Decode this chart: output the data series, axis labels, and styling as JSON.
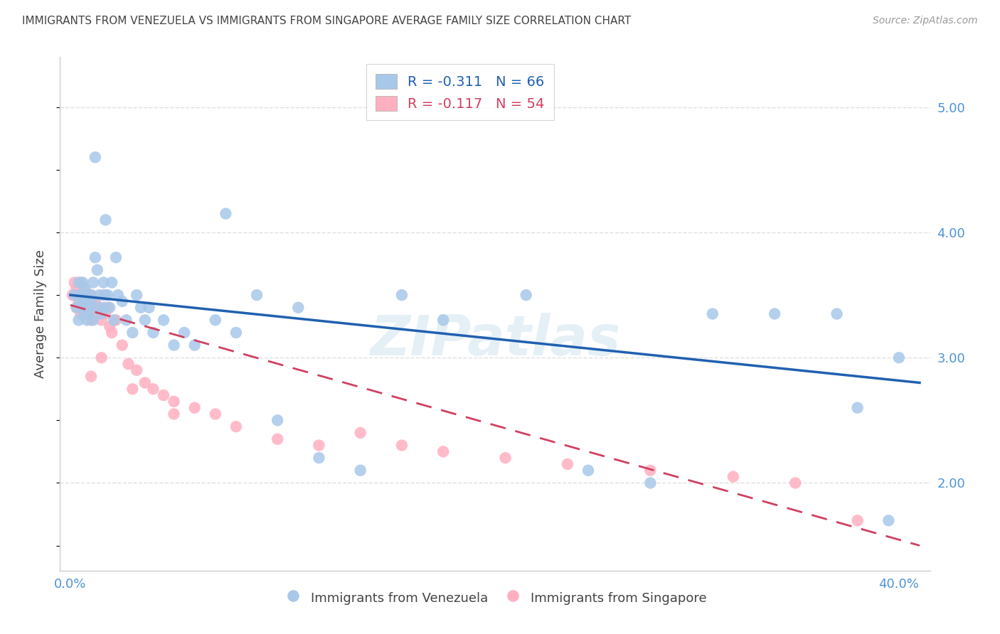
{
  "title": "IMMIGRANTS FROM VENEZUELA VS IMMIGRANTS FROM SINGAPORE AVERAGE FAMILY SIZE CORRELATION CHART",
  "source": "Source: ZipAtlas.com",
  "ylabel": "Average Family Size",
  "watermark": "ZIPatlas",
  "venezuela_color": "#a8c8ea",
  "singapore_color": "#ffb0c0",
  "venezuela_line_color": "#2060b0",
  "singapore_line_color": "#d04060",
  "venezuela_text_color": "#2060b0",
  "singapore_text_color": "#d04060",
  "tick_label_color": "#4d94d4",
  "title_color": "#444444",
  "grid_color": "#d8d8d8",
  "background_color": "#ffffff",
  "ylim": [
    1.3,
    5.4
  ],
  "xlim": [
    -0.005,
    0.415
  ],
  "y_ticks_right": [
    2.0,
    3.0,
    4.0,
    5.0
  ],
  "y_tick_labels_right": [
    "2.00",
    "3.00",
    "4.00",
    "5.00"
  ],
  "x_tick_positions": [
    0.0,
    0.1,
    0.2,
    0.3,
    0.4
  ],
  "x_tick_labels": [
    "0.0%",
    "",
    "",
    "",
    "40.0%"
  ],
  "legend_r1": "R = -0.311",
  "legend_n1": "N = 66",
  "legend_r2": "R = -0.117",
  "legend_n2": "N = 54",
  "venezuela_scatter_x": [
    0.002,
    0.003,
    0.004,
    0.004,
    0.005,
    0.005,
    0.006,
    0.006,
    0.007,
    0.007,
    0.007,
    0.008,
    0.008,
    0.009,
    0.009,
    0.01,
    0.01,
    0.011,
    0.011,
    0.012,
    0.012,
    0.013,
    0.013,
    0.014,
    0.015,
    0.016,
    0.016,
    0.017,
    0.017,
    0.018,
    0.019,
    0.02,
    0.021,
    0.022,
    0.023,
    0.025,
    0.027,
    0.03,
    0.032,
    0.034,
    0.036,
    0.038,
    0.04,
    0.045,
    0.05,
    0.055,
    0.06,
    0.07,
    0.075,
    0.08,
    0.09,
    0.1,
    0.11,
    0.12,
    0.14,
    0.16,
    0.18,
    0.22,
    0.25,
    0.28,
    0.31,
    0.34,
    0.37,
    0.38,
    0.395,
    0.4
  ],
  "venezuela_scatter_y": [
    3.5,
    3.4,
    3.6,
    3.3,
    3.5,
    3.45,
    3.4,
    3.6,
    3.35,
    3.45,
    3.55,
    3.5,
    3.3,
    3.4,
    3.35,
    3.5,
    3.45,
    3.6,
    3.3,
    4.6,
    3.8,
    3.7,
    3.4,
    3.5,
    3.35,
    3.6,
    3.4,
    4.1,
    3.5,
    3.5,
    3.4,
    3.6,
    3.3,
    3.8,
    3.5,
    3.45,
    3.3,
    3.2,
    3.5,
    3.4,
    3.3,
    3.4,
    3.2,
    3.3,
    3.1,
    3.2,
    3.1,
    3.3,
    4.15,
    3.2,
    3.5,
    2.5,
    3.4,
    2.2,
    2.1,
    3.5,
    3.3,
    3.5,
    2.1,
    2.0,
    3.35,
    3.35,
    3.35,
    2.6,
    1.7,
    3.0
  ],
  "singapore_scatter_x": [
    0.001,
    0.002,
    0.003,
    0.003,
    0.004,
    0.004,
    0.005,
    0.005,
    0.006,
    0.006,
    0.007,
    0.007,
    0.008,
    0.008,
    0.009,
    0.009,
    0.01,
    0.01,
    0.011,
    0.012,
    0.013,
    0.014,
    0.015,
    0.016,
    0.017,
    0.018,
    0.019,
    0.02,
    0.022,
    0.025,
    0.028,
    0.032,
    0.036,
    0.04,
    0.045,
    0.05,
    0.06,
    0.07,
    0.08,
    0.1,
    0.12,
    0.14,
    0.16,
    0.18,
    0.21,
    0.24,
    0.28,
    0.32,
    0.35,
    0.38,
    0.01,
    0.015,
    0.03,
    0.05
  ],
  "singapore_scatter_y": [
    3.5,
    3.6,
    3.4,
    3.55,
    3.45,
    3.5,
    3.35,
    3.6,
    3.4,
    3.45,
    3.35,
    3.55,
    3.4,
    3.5,
    3.35,
    3.45,
    3.3,
    3.5,
    3.4,
    3.45,
    3.35,
    3.4,
    3.3,
    3.5,
    3.35,
    3.4,
    3.25,
    3.2,
    3.3,
    3.1,
    2.95,
    2.9,
    2.8,
    2.75,
    2.7,
    2.65,
    2.6,
    2.55,
    2.45,
    2.35,
    2.3,
    2.4,
    2.3,
    2.25,
    2.2,
    2.15,
    2.1,
    2.05,
    2.0,
    1.7,
    2.85,
    3.0,
    2.75,
    2.55
  ],
  "ven_trend_x0": 0.0,
  "ven_trend_y0": 3.5,
  "ven_trend_x1": 0.41,
  "ven_trend_y1": 2.8,
  "sin_trend_x0": 0.0,
  "sin_trend_y0": 3.42,
  "sin_trend_x1": 0.41,
  "sin_trend_y1": 1.5
}
